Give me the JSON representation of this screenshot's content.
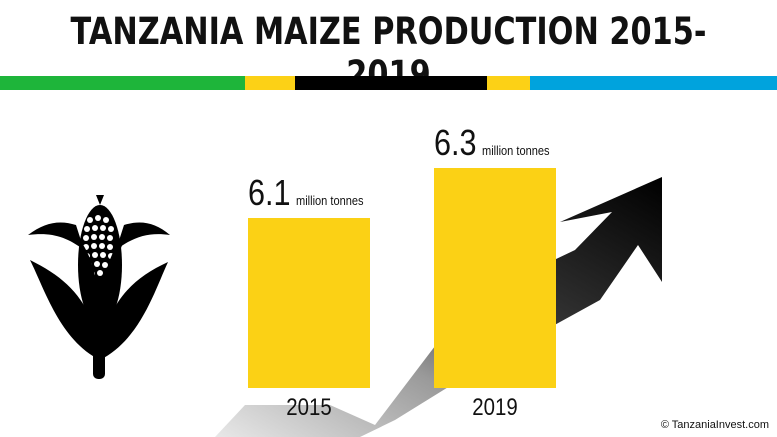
{
  "header": {
    "title": "TANZANIA MAIZE PRODUCTION 2015-2019",
    "flag_colors": [
      "#1EB53A",
      "#FCD116",
      "#000000",
      "#FCD116",
      "#00A3DD"
    ]
  },
  "chart_data": {
    "type": "bar",
    "title": "TANZANIA MAIZE PRODUCTION 2015-2019",
    "categories": [
      "2015",
      "2019"
    ],
    "values": [
      6.1,
      6.3
    ],
    "value_labels": [
      "6.1",
      "6.3"
    ],
    "unit": "million tonnes",
    "bar_color": "#FBD115",
    "grid": false
  },
  "decor": {
    "icon": "maize-cob-icon",
    "trend": "rising-arrow"
  },
  "footer": {
    "credit": "© TanzaniaInvest.com"
  }
}
